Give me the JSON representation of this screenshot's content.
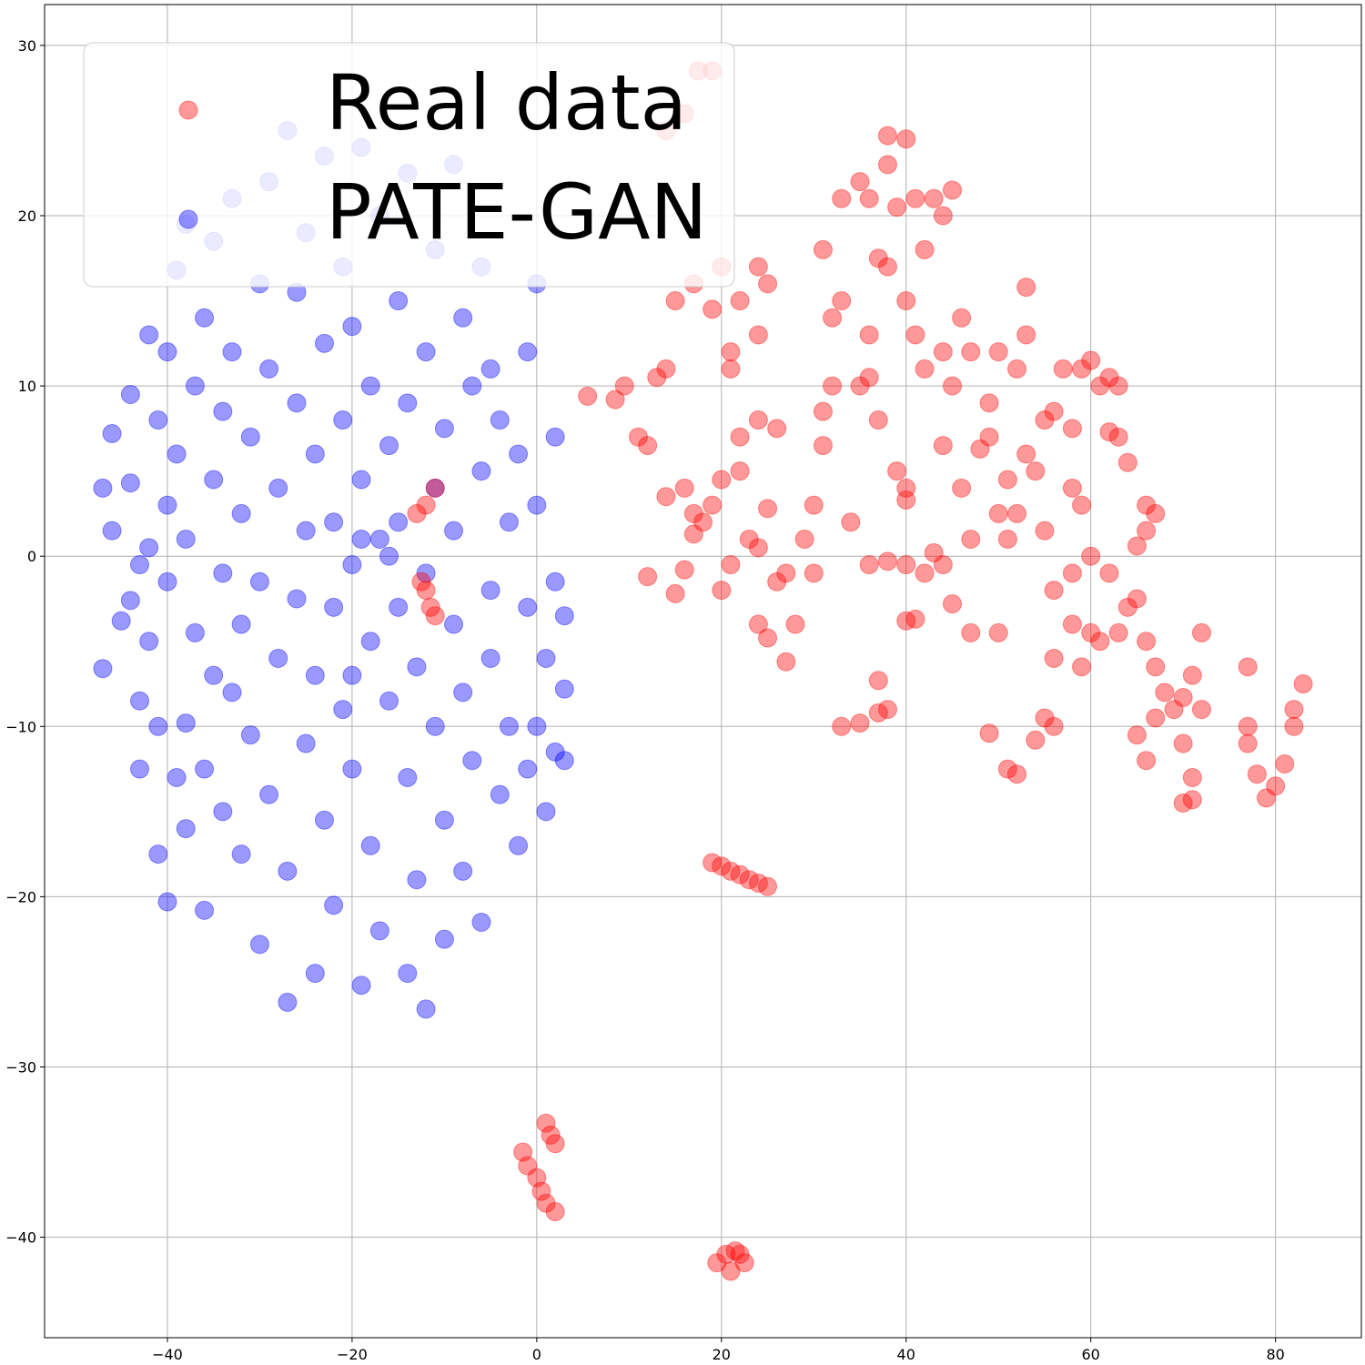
{
  "chart_data": {
    "type": "scatter",
    "xlim": [
      -53.3,
      89.3
    ],
    "ylim": [
      -45.9,
      32.4
    ],
    "xticks": [
      {
        "value": -40,
        "label": "−40"
      },
      {
        "value": -20,
        "label": "−20"
      },
      0,
      20,
      40,
      60,
      80
    ],
    "yticks": [
      {
        "value": -40,
        "label": "−40"
      },
      {
        "value": -30,
        "label": "−30"
      },
      {
        "value": -20,
        "label": "−20"
      },
      {
        "value": -10,
        "label": "−10"
      },
      0,
      10,
      20,
      30
    ],
    "grid": true,
    "legend": "upper left",
    "series": [
      {
        "name": "Real data",
        "color": "red",
        "x": [
          17.5,
          16,
          14,
          19,
          5.5,
          8.5,
          9.5,
          11,
          12,
          13,
          14,
          15,
          17,
          19,
          20,
          14,
          16,
          17,
          18,
          19,
          20,
          15,
          12,
          16,
          17,
          20,
          21,
          22,
          22,
          21,
          21,
          22,
          24,
          24,
          25,
          24,
          26,
          25,
          23,
          24,
          26,
          27,
          24,
          25,
          27,
          28,
          29,
          30,
          30,
          31,
          31,
          32,
          32,
          33,
          31,
          33,
          35,
          36,
          37,
          38,
          35,
          36,
          37,
          39,
          38,
          34,
          36,
          33,
          35,
          37,
          38,
          37,
          36,
          38,
          38,
          40,
          39,
          41,
          42,
          43,
          44,
          45,
          40,
          41,
          42,
          44,
          45,
          46,
          47,
          44,
          46,
          48,
          49,
          49,
          50,
          52,
          53,
          53,
          50,
          51,
          53,
          54,
          51,
          52,
          55,
          55,
          56,
          57,
          59,
          60,
          61,
          62,
          63,
          58,
          62,
          63,
          58,
          59,
          64,
          66,
          67,
          66,
          65,
          62,
          60,
          58,
          56,
          58,
          60,
          61,
          63,
          64,
          65,
          66,
          67,
          68,
          67,
          65,
          66,
          69,
          70,
          70,
          71,
          71,
          70,
          71,
          72,
          72,
          77,
          77,
          77,
          78,
          79,
          80,
          81,
          82,
          82,
          83,
          56,
          59,
          49,
          51,
          52,
          54,
          55,
          56,
          50,
          47,
          45,
          44,
          42,
          40,
          41,
          40,
          43,
          47,
          40,
          40,
          19,
          20,
          21,
          22,
          23,
          24,
          25,
          -1.5,
          -1,
          0,
          0.5,
          1,
          2,
          1,
          1.5,
          2,
          19.5,
          20.5,
          21,
          22,
          22.5,
          21.5,
          -12,
          -11,
          -13,
          -12,
          -11.5,
          -11,
          -12.5
        ],
        "y": [
          28.5,
          26,
          25,
          28.5,
          9.4,
          9.2,
          10,
          7,
          6.5,
          10.5,
          11,
          15,
          16,
          14.5,
          17,
          3.5,
          4,
          2.5,
          2,
          3,
          4.5,
          -2.2,
          -1.2,
          -0.8,
          1.3,
          -2,
          -0.5,
          5,
          7,
          11,
          12,
          15,
          13,
          17,
          16,
          8,
          7.5,
          2.8,
          1,
          0.5,
          -1.5,
          -1,
          -4,
          -4.8,
          -6.2,
          -4,
          1,
          -1,
          3,
          6.5,
          8.5,
          10,
          14,
          15,
          18,
          21,
          22,
          21,
          17.5,
          17,
          10,
          10.5,
          8,
          5,
          -0.3,
          2,
          -0.5,
          -10,
          -9.8,
          -9.2,
          -9,
          -7.3,
          13,
          23,
          24.7,
          24.5,
          20.5,
          21,
          18,
          21,
          20,
          21.5,
          15,
          13,
          11,
          12,
          10,
          14,
          12,
          6.5,
          4,
          6.3,
          7,
          9,
          12,
          11,
          13,
          15.8,
          2.5,
          4.5,
          6,
          5,
          1,
          2.5,
          1.5,
          8,
          8.5,
          11,
          11,
          11.5,
          10,
          10.5,
          10,
          7.5,
          7.3,
          7,
          4,
          3,
          5.5,
          3,
          2.5,
          1.5,
          0.6,
          -1,
          0,
          -1,
          -2,
          -4,
          -4.5,
          -5,
          -4.5,
          -3,
          -2.5,
          -5,
          -6.5,
          -8,
          -9.5,
          -10.5,
          -12,
          -9,
          -8.3,
          -11,
          -13,
          -14.3,
          -14.5,
          -7,
          -4.5,
          -9,
          -6.5,
          -10,
          -11,
          -12.8,
          -14.2,
          -13.5,
          -12.2,
          -9,
          -10,
          -7.5,
          -6,
          -6.5,
          -10.4,
          -12.5,
          -12.8,
          -10.8,
          -9.5,
          -10,
          -4.5,
          -4.5,
          -2.8,
          -0.5,
          -1,
          -3.8,
          -3.7,
          -0.5,
          0.2,
          1,
          4,
          3.3,
          -18,
          -18.2,
          -18.5,
          -18.7,
          -19,
          -19.2,
          -19.4,
          -35,
          -35.8,
          -36.5,
          -37.3,
          -38,
          -38.5,
          -33.3,
          -34,
          -34.5,
          -41.5,
          -41,
          -42,
          -41,
          -41.5,
          -40.8,
          3,
          4,
          2.5,
          -2,
          -3,
          -3.5,
          -1.5
        ]
      },
      {
        "name": "PATE-GAN",
        "color": "blue",
        "x": [
          -47,
          -47,
          -46,
          -46,
          -45,
          -44,
          -44,
          -44,
          -43,
          -43,
          -42,
          -42,
          -42,
          -41,
          -41,
          -41,
          -40,
          -40,
          -40,
          -40,
          -39,
          -39,
          -39,
          -38,
          -38,
          -38,
          -38,
          -37,
          -37,
          -36,
          -36,
          -36,
          -35,
          -35,
          -35,
          -34,
          -34,
          -34,
          -33,
          -33,
          -32,
          -32,
          -32,
          -31,
          -31,
          -30,
          -30,
          -30,
          -29,
          -29,
          -29,
          -28,
          -28,
          -27,
          -27,
          -27,
          -26,
          -26,
          -26,
          -25,
          -25,
          -25,
          -24,
          -24,
          -24,
          -23,
          -23,
          -23,
          -22,
          -22,
          -22,
          -21,
          -21,
          -21,
          -20,
          -20,
          -20,
          -19,
          -19,
          -19,
          -18,
          -18,
          -18,
          -17,
          -17,
          -17,
          -16,
          -16,
          -16,
          -15,
          -15,
          -15,
          -14,
          -14,
          -14,
          -14,
          -13,
          -13,
          -12,
          -12,
          -12,
          -11,
          -11,
          -11,
          -10,
          -10,
          -10,
          -9,
          -9,
          -9,
          -8,
          -8,
          -8,
          -7,
          -7,
          -6,
          -6,
          -6,
          -5,
          -5,
          -5,
          -4,
          -4,
          -3,
          -3,
          -2,
          -2,
          -1,
          -1,
          0,
          0,
          0,
          1,
          1,
          2,
          2,
          2,
          3,
          3,
          3,
          -1,
          -43,
          -33,
          -20,
          -19
        ],
        "y": [
          4,
          -6.6,
          7.2,
          1.5,
          -3.8,
          9.5,
          -2.6,
          4.3,
          -8.5,
          -12.5,
          13,
          0.5,
          -5,
          -10,
          -17.5,
          8,
          12,
          -20.3,
          3,
          -1.5,
          16.8,
          -13,
          6,
          19.5,
          -9.8,
          -16,
          1,
          -4.5,
          10,
          -12.5,
          14,
          -20.8,
          -7,
          4.5,
          18.5,
          -15,
          8.5,
          -1,
          21,
          12,
          -17.5,
          -4,
          2.5,
          -10.5,
          7,
          16,
          -22.8,
          -1.5,
          22,
          11,
          -14,
          -6,
          4,
          25,
          -18.5,
          -26.2,
          9,
          -2.5,
          15.5,
          -11,
          19,
          1.5,
          -24.5,
          -7,
          6,
          23.5,
          12.5,
          -15.5,
          -3,
          2,
          -20.5,
          17,
          8,
          -9,
          -12.5,
          13.5,
          -0.5,
          24,
          -25.2,
          4.5,
          -5,
          10,
          -17,
          20,
          1,
          -22,
          -8.5,
          6.5,
          0,
          15,
          -3,
          2,
          -13,
          22.5,
          -24.5,
          9,
          -6.5,
          -19,
          -26.6,
          12,
          -1,
          18,
          4,
          -10,
          -15.5,
          7.5,
          -22.5,
          23,
          -4,
          1.5,
          14,
          -8,
          -18.5,
          10,
          -12,
          5,
          -21.5,
          17,
          -2,
          -6,
          11,
          -14,
          8,
          2,
          -10,
          -17,
          6,
          -3,
          12,
          -10,
          3,
          16,
          -15,
          -6,
          7,
          -1.5,
          -11.5,
          -7.8,
          -3.5,
          -12,
          -12.5,
          -0.5,
          -8,
          -7,
          1
        ]
      }
    ]
  }
}
